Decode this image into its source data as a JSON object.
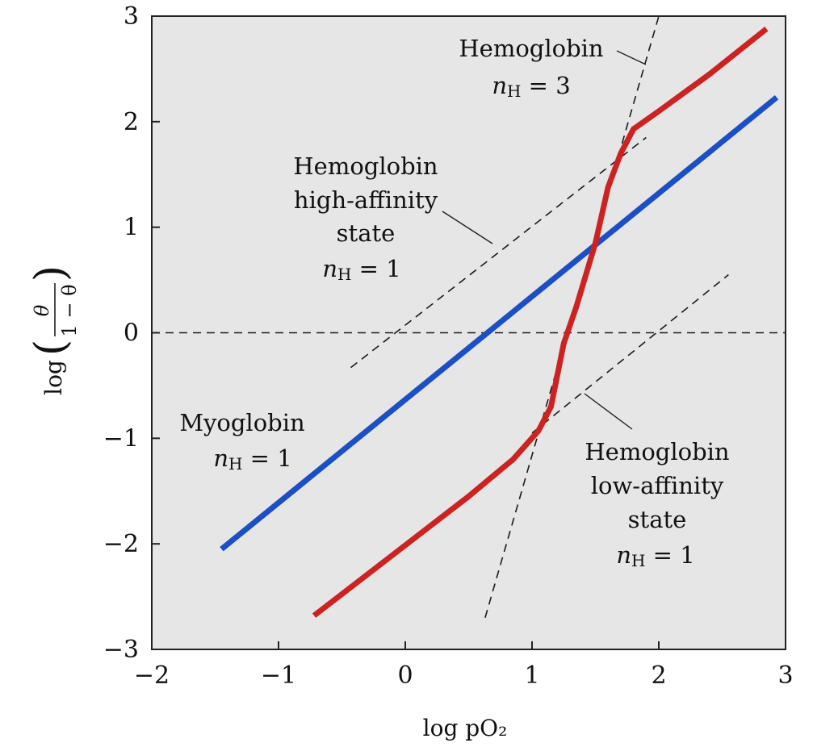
{
  "chart_data": {
    "type": "line",
    "xlabel": "log pO₂",
    "ylabel_prefix": "log",
    "ylabel_numerator": "θ",
    "ylabel_denominator": "1 − θ",
    "xlim": [
      -2,
      3
    ],
    "ylim": [
      -3,
      3
    ],
    "xticks": [
      -2,
      -1,
      0,
      1,
      2,
      3
    ],
    "yticks": [
      -3,
      -2,
      -1,
      0,
      1,
      2,
      3
    ],
    "xtick_labels": [
      "−2",
      "−1",
      "0",
      "1",
      "2",
      "3"
    ],
    "ytick_labels": [
      "−3",
      "−2",
      "−1",
      "0",
      "1",
      "2",
      "3"
    ],
    "grid": false,
    "background": "#e6e6e6",
    "series": [
      {
        "key": "myoglobin",
        "color": "#1d4fc4",
        "points": [
          [
            -1.45,
            -2.05
          ],
          [
            2.93,
            2.23
          ]
        ]
      },
      {
        "key": "hemoglobin",
        "color": "#cc2222",
        "points": [
          [
            -0.72,
            -2.68
          ],
          [
            0.5,
            -1.55
          ],
          [
            0.85,
            -1.2
          ],
          [
            1.05,
            -0.93
          ],
          [
            1.15,
            -0.7
          ],
          [
            1.25,
            -0.1
          ],
          [
            1.35,
            0.25
          ],
          [
            1.5,
            0.85
          ],
          [
            1.6,
            1.38
          ],
          [
            1.7,
            1.7
          ],
          [
            1.8,
            1.93
          ],
          [
            2.0,
            2.1
          ],
          [
            2.4,
            2.45
          ],
          [
            2.85,
            2.88
          ]
        ]
      }
    ],
    "reference_lines": [
      {
        "key": "nh3",
        "points": [
          [
            0.63,
            -2.7
          ],
          [
            2.0,
            3.0
          ]
        ]
      },
      {
        "key": "high_affinity",
        "points": [
          [
            -0.43,
            -0.33
          ],
          [
            1.9,
            1.85
          ]
        ]
      },
      {
        "key": "low_affinity",
        "points": [
          [
            1.0,
            -0.95
          ],
          [
            2.55,
            0.55
          ]
        ]
      },
      {
        "key": "zero",
        "points": [
          [
            -2.0,
            0.0
          ],
          [
            3.0,
            0.0
          ]
        ]
      }
    ],
    "annotations": {
      "hb_nh3": {
        "line1": "Hemoglobin",
        "n": "n",
        "sub": "H",
        "rest": " = 3"
      },
      "hb_high": {
        "line1": "Hemoglobin",
        "line2": "high-affinity",
        "line3": "state",
        "n": "n",
        "sub": "H",
        "rest": " = 1"
      },
      "myo": {
        "line1": "Myoglobin",
        "n": "n",
        "sub": "H",
        "rest": " = 1"
      },
      "hb_low": {
        "line1": "Hemoglobin",
        "line2": "low-affinity",
        "line3": "state",
        "n": "n",
        "sub": "H",
        "rest": " = 1"
      }
    }
  }
}
